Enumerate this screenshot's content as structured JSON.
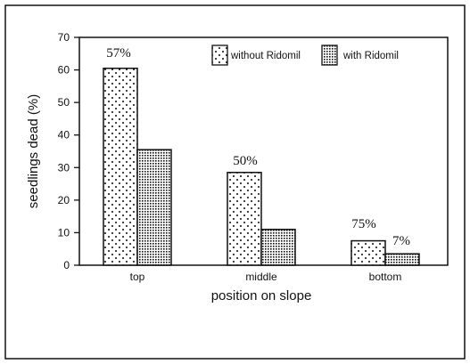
{
  "chart_data": {
    "type": "bar",
    "xlabel": "position on slope",
    "ylabel": "seedlings dead (%)",
    "ylim": [
      0,
      70
    ],
    "yticks": [
      "0",
      "10",
      "20",
      "30",
      "40",
      "50",
      "60",
      "70"
    ],
    "categories": [
      "top",
      "middle",
      "bottom"
    ],
    "series": [
      {
        "name": "without Ridomil",
        "values": [
          60.5,
          28.5,
          7.5
        ],
        "pattern": "sparse-dots"
      },
      {
        "name": "with Ridomil",
        "values": [
          35.5,
          11,
          3.5
        ],
        "pattern": "dense-dots"
      }
    ],
    "annotations": [
      "57%",
      "50%",
      "75%",
      "7%"
    ],
    "legend": {
      "position": "top-right"
    },
    "grid": false,
    "colors": {
      "ink": "#111111",
      "background": "#ffffff"
    }
  }
}
